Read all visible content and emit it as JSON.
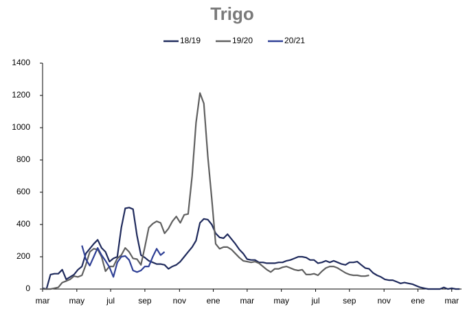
{
  "chart_data": {
    "type": "line",
    "title": "Trigo",
    "x": [
      0,
      1,
      2,
      3,
      4,
      5,
      6,
      7,
      8,
      9,
      10,
      11,
      12,
      13,
      14,
      15,
      16,
      17,
      18,
      19,
      20,
      21,
      22,
      23,
      24,
      25,
      26,
      27,
      28,
      29,
      30,
      31,
      32,
      33,
      34,
      35,
      36,
      37,
      38,
      39,
      40,
      41,
      42,
      43,
      44,
      45,
      46,
      47,
      48,
      49,
      50,
      51,
      52,
      53,
      54,
      55,
      56,
      57,
      58,
      59,
      60,
      61,
      62,
      63,
      64,
      65,
      66,
      67,
      68,
      69,
      70,
      71,
      72,
      73,
      74,
      75,
      76,
      77,
      78,
      79,
      80,
      81,
      82,
      83,
      84,
      85,
      86,
      87,
      88,
      89,
      90,
      91,
      92,
      93,
      94,
      95,
      96,
      97,
      98,
      99,
      100,
      101,
      102,
      103,
      104,
      105,
      106
    ],
    "series": [
      {
        "name": "18/19",
        "color": "#1f2a5c",
        "values": [
          5,
          0,
          90,
          95,
          95,
          120,
          60,
          75,
          90,
          120,
          140,
          220,
          250,
          280,
          305,
          255,
          230,
          170,
          190,
          200,
          380,
          500,
          505,
          495,
          330,
          210,
          195,
          175,
          165,
          155,
          155,
          150,
          125,
          140,
          150,
          170,
          200,
          230,
          260,
          300,
          410,
          435,
          430,
          400,
          345,
          320,
          315,
          340,
          310,
          280,
          245,
          220,
          185,
          180,
          180,
          165,
          165,
          160,
          160,
          160,
          165,
          165,
          175,
          180,
          190,
          200,
          200,
          195,
          180,
          180,
          160,
          165,
          175,
          165,
          175,
          165,
          155,
          150,
          165,
          165,
          170,
          150,
          130,
          125,
          100,
          85,
          75,
          60,
          55,
          55,
          45,
          35,
          40,
          35,
          30,
          20,
          10,
          5,
          0,
          0,
          0,
          0,
          10,
          0,
          5,
          0,
          0
        ]
      },
      {
        "name": "19/20",
        "color": "#5f5f5f",
        "values": [
          0,
          0,
          0,
          5,
          10,
          40,
          50,
          60,
          80,
          75,
          85,
          150,
          230,
          250,
          245,
          200,
          110,
          140,
          140,
          190,
          210,
          255,
          230,
          190,
          185,
          150,
          260,
          380,
          405,
          420,
          410,
          345,
          375,
          420,
          450,
          410,
          460,
          465,
          700,
          1030,
          1215,
          1150,
          820,
          560,
          280,
          250,
          260,
          260,
          245,
          220,
          195,
          175,
          170,
          165,
          170,
          160,
          140,
          120,
          105,
          125,
          125,
          135,
          140,
          130,
          120,
          115,
          120,
          90,
          90,
          95,
          85,
          110,
          130,
          140,
          140,
          130,
          115,
          100,
          90,
          85,
          85,
          80,
          80,
          85,
          null,
          null,
          null,
          null,
          null,
          null,
          null,
          null,
          null,
          null,
          null,
          null,
          null,
          null,
          null,
          null,
          null,
          null,
          null,
          null,
          null,
          null,
          null
        ]
      },
      {
        "name": "20/21",
        "color": "#2e3f95",
        "values": [
          null,
          null,
          null,
          null,
          null,
          null,
          null,
          null,
          null,
          null,
          270,
          185,
          145,
          200,
          255,
          210,
          175,
          135,
          75,
          165,
          200,
          205,
          180,
          115,
          105,
          115,
          140,
          140,
          200,
          250,
          210,
          230,
          null,
          null,
          null,
          null,
          null,
          null,
          null,
          null,
          null,
          null,
          null,
          null,
          null,
          null,
          null,
          null,
          null,
          null,
          null,
          null,
          null,
          null,
          null,
          null,
          null,
          null,
          null,
          null,
          null,
          null,
          null,
          null,
          null,
          null,
          null,
          null,
          null,
          null,
          null,
          null,
          null,
          null,
          null,
          null,
          null,
          null,
          null,
          null,
          null,
          null,
          null,
          null,
          null,
          null,
          null,
          null,
          null,
          null,
          null,
          null,
          null,
          null,
          null,
          null,
          null,
          null,
          null,
          null,
          null,
          null,
          null,
          null,
          null,
          null,
          null
        ]
      }
    ],
    "xlim": [
      0,
      106.5
    ],
    "xticks": [
      {
        "value": 0,
        "label": "mar"
      },
      {
        "value": 8.7,
        "label": "may"
      },
      {
        "value": 17.3,
        "label": "jul"
      },
      {
        "value": 26,
        "label": "sep"
      },
      {
        "value": 34.8,
        "label": "nov"
      },
      {
        "value": 43.4,
        "label": "ene"
      },
      {
        "value": 52,
        "label": "mar"
      },
      {
        "value": 60.7,
        "label": "may"
      },
      {
        "value": 69.4,
        "label": "jul"
      },
      {
        "value": 78,
        "label": "sep"
      },
      {
        "value": 86.8,
        "label": "nov"
      },
      {
        "value": 95.4,
        "label": "ene"
      },
      {
        "value": 104,
        "label": "mar"
      }
    ],
    "ylim": [
      0,
      1400
    ],
    "yticks": [
      0,
      200,
      400,
      600,
      800,
      1000,
      1200,
      1400
    ],
    "grid": false
  }
}
